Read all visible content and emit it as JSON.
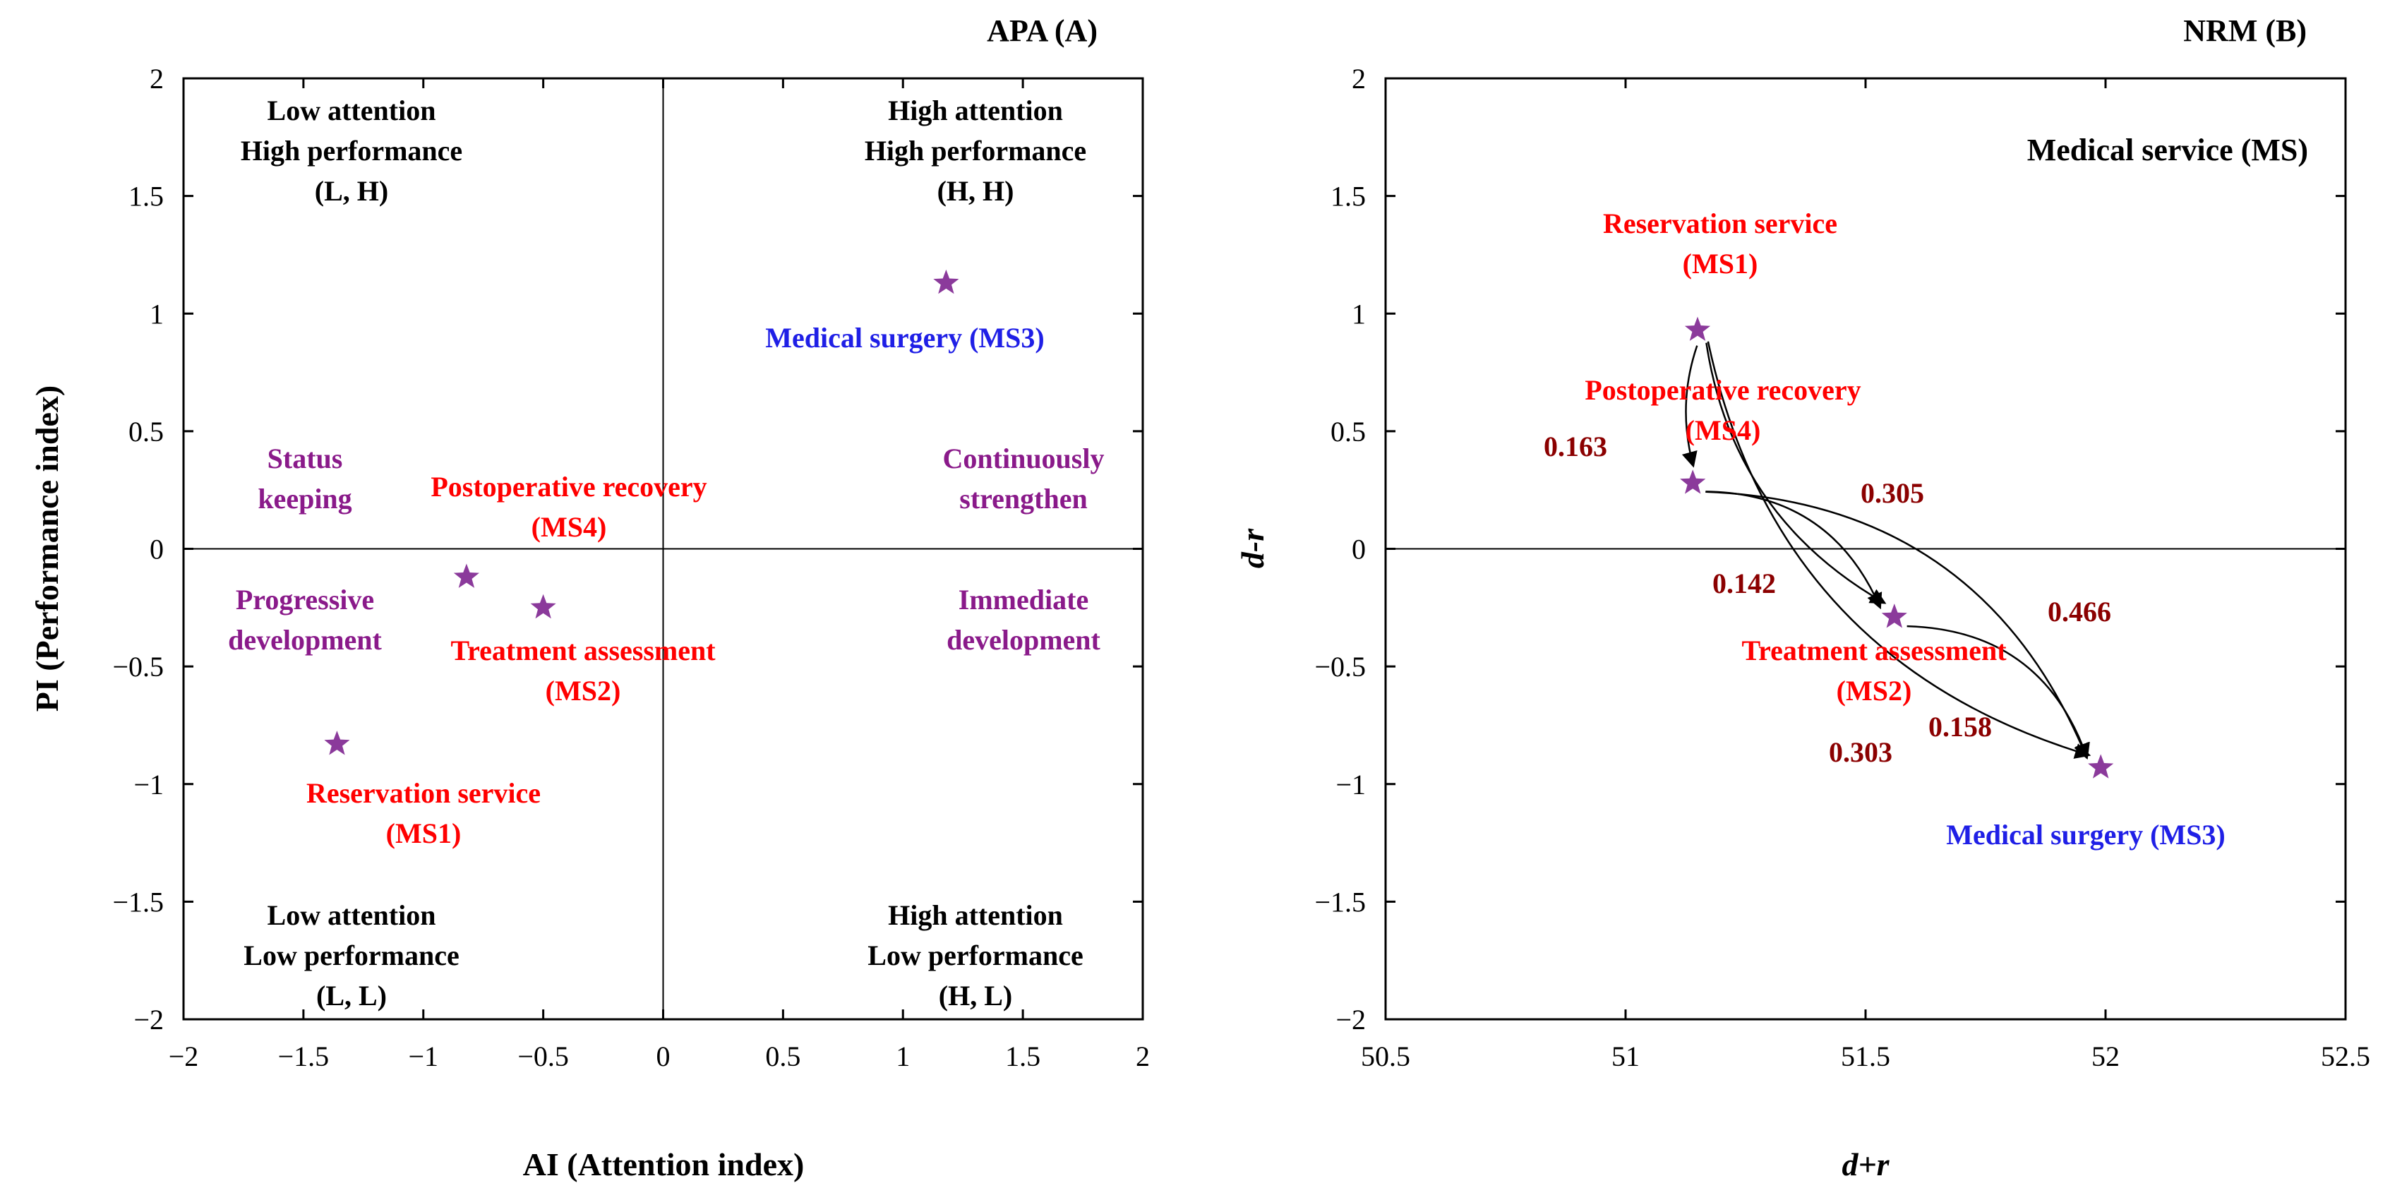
{
  "colors": {
    "red": "#ff0000",
    "blue": "#1f1fe6",
    "purple": "#8a1a8a",
    "star": "#8b3a9b",
    "darkred": "#8b0000",
    "black": "#000000"
  },
  "chart_data": [
    {
      "type": "scatter",
      "title": "APA (A)",
      "xlabel": "AI (Attention index)",
      "ylabel": "PI (Performance index)",
      "xlim": [
        -2,
        2
      ],
      "ylim": [
        -2,
        2
      ],
      "xticks": [
        -2,
        -1.5,
        -1,
        -0.5,
        0,
        0.5,
        1,
        1.5,
        2
      ],
      "yticks": [
        -2,
        -1.5,
        -1,
        -0.5,
        0,
        0.5,
        1,
        1.5,
        2
      ],
      "xtick_labels": [
        "−2",
        "−1.5",
        "−1",
        "−0.5",
        "0",
        "0.5",
        "1",
        "1.5",
        "2"
      ],
      "ytick_labels": [
        "−2",
        "−1.5",
        "−1",
        "−0.5",
        "0",
        "0.5",
        "1",
        "1.5",
        "2"
      ],
      "reference_lines": {
        "x": 0,
        "y": 0
      },
      "points": [
        {
          "id": "MS1",
          "x": -1.36,
          "y": -0.83,
          "label_lines": [
            "Reservation service",
            "(MS1)"
          ],
          "color": "red"
        },
        {
          "id": "MS2",
          "x": -0.5,
          "y": -0.25,
          "label_lines": [
            "Treatment assessment",
            "(MS2)"
          ],
          "color": "red"
        },
        {
          "id": "MS3",
          "x": 1.18,
          "y": 1.13,
          "label_lines": [
            "Medical surgery (MS3)"
          ],
          "color": "blue"
        },
        {
          "id": "MS4",
          "x": -0.82,
          "y": -0.12,
          "label_lines": [
            "Postoperative recovery",
            "(MS4)"
          ],
          "color": "red"
        }
      ],
      "quadrant_labels": [
        {
          "id": "LH",
          "lines": [
            "Low attention",
            "High performance",
            "(L, H)"
          ]
        },
        {
          "id": "HH",
          "lines": [
            "High attention",
            "High performance",
            "(H, H)"
          ]
        },
        {
          "id": "LL",
          "lines": [
            "Low attention",
            "Low performance",
            "(L, L)"
          ]
        },
        {
          "id": "HL",
          "lines": [
            "High attention",
            "Low performance",
            "(H, L)"
          ]
        }
      ],
      "strategy_labels": [
        {
          "id": "status",
          "lines": [
            "Status",
            "keeping"
          ]
        },
        {
          "id": "continuous",
          "lines": [
            "Continuously",
            "strengthen"
          ]
        },
        {
          "id": "progressive",
          "lines": [
            "Progressive",
            "development"
          ]
        },
        {
          "id": "immediate",
          "lines": [
            "Immediate",
            "development"
          ]
        }
      ]
    },
    {
      "type": "scatter",
      "title": "NRM (B)",
      "subtitle": "Medical service (MS)",
      "xlabel": "d+r",
      "ylabel": "d-r",
      "xlim": [
        50.5,
        52.5
      ],
      "ylim": [
        -2,
        2
      ],
      "xticks": [
        50.5,
        51,
        51.5,
        52,
        52.5
      ],
      "yticks": [
        -2,
        -1.5,
        -1,
        -0.5,
        0,
        0.5,
        1,
        1.5,
        2
      ],
      "xtick_labels": [
        "50.5",
        "51",
        "51.5",
        "52",
        "52.5"
      ],
      "ytick_labels": [
        "−2",
        "−1.5",
        "−1",
        "−0.5",
        "0",
        "0.5",
        "1",
        "1.5",
        "2"
      ],
      "reference_lines": {
        "y": 0
      },
      "points": [
        {
          "id": "MS1",
          "x": 51.15,
          "y": 0.93,
          "label_lines": [
            "Reservation service",
            "(MS1)"
          ],
          "color": "red"
        },
        {
          "id": "MS2",
          "x": 51.56,
          "y": -0.29,
          "label_lines": [
            "Treatment assessment",
            "(MS2)"
          ],
          "color": "red"
        },
        {
          "id": "MS3",
          "x": 51.99,
          "y": -0.93,
          "label_lines": [
            "Medical surgery (MS3)"
          ],
          "color": "blue"
        },
        {
          "id": "MS4",
          "x": 51.14,
          "y": 0.28,
          "label_lines": [
            "Postoperative recovery",
            "(MS4)"
          ],
          "color": "red"
        }
      ],
      "influence_arrows": [
        {
          "from": "MS1",
          "to": "MS4",
          "weight": "0.163"
        },
        {
          "from": "MS1",
          "to": "MS2",
          "weight": "0.305"
        },
        {
          "from": "MS1",
          "to": "MS3",
          "weight": "0.466"
        },
        {
          "from": "MS4",
          "to": "MS2",
          "weight": "0.142"
        },
        {
          "from": "MS4",
          "to": "MS3",
          "weight": "0.303"
        },
        {
          "from": "MS2",
          "to": "MS3",
          "weight": "0.158"
        }
      ]
    }
  ]
}
